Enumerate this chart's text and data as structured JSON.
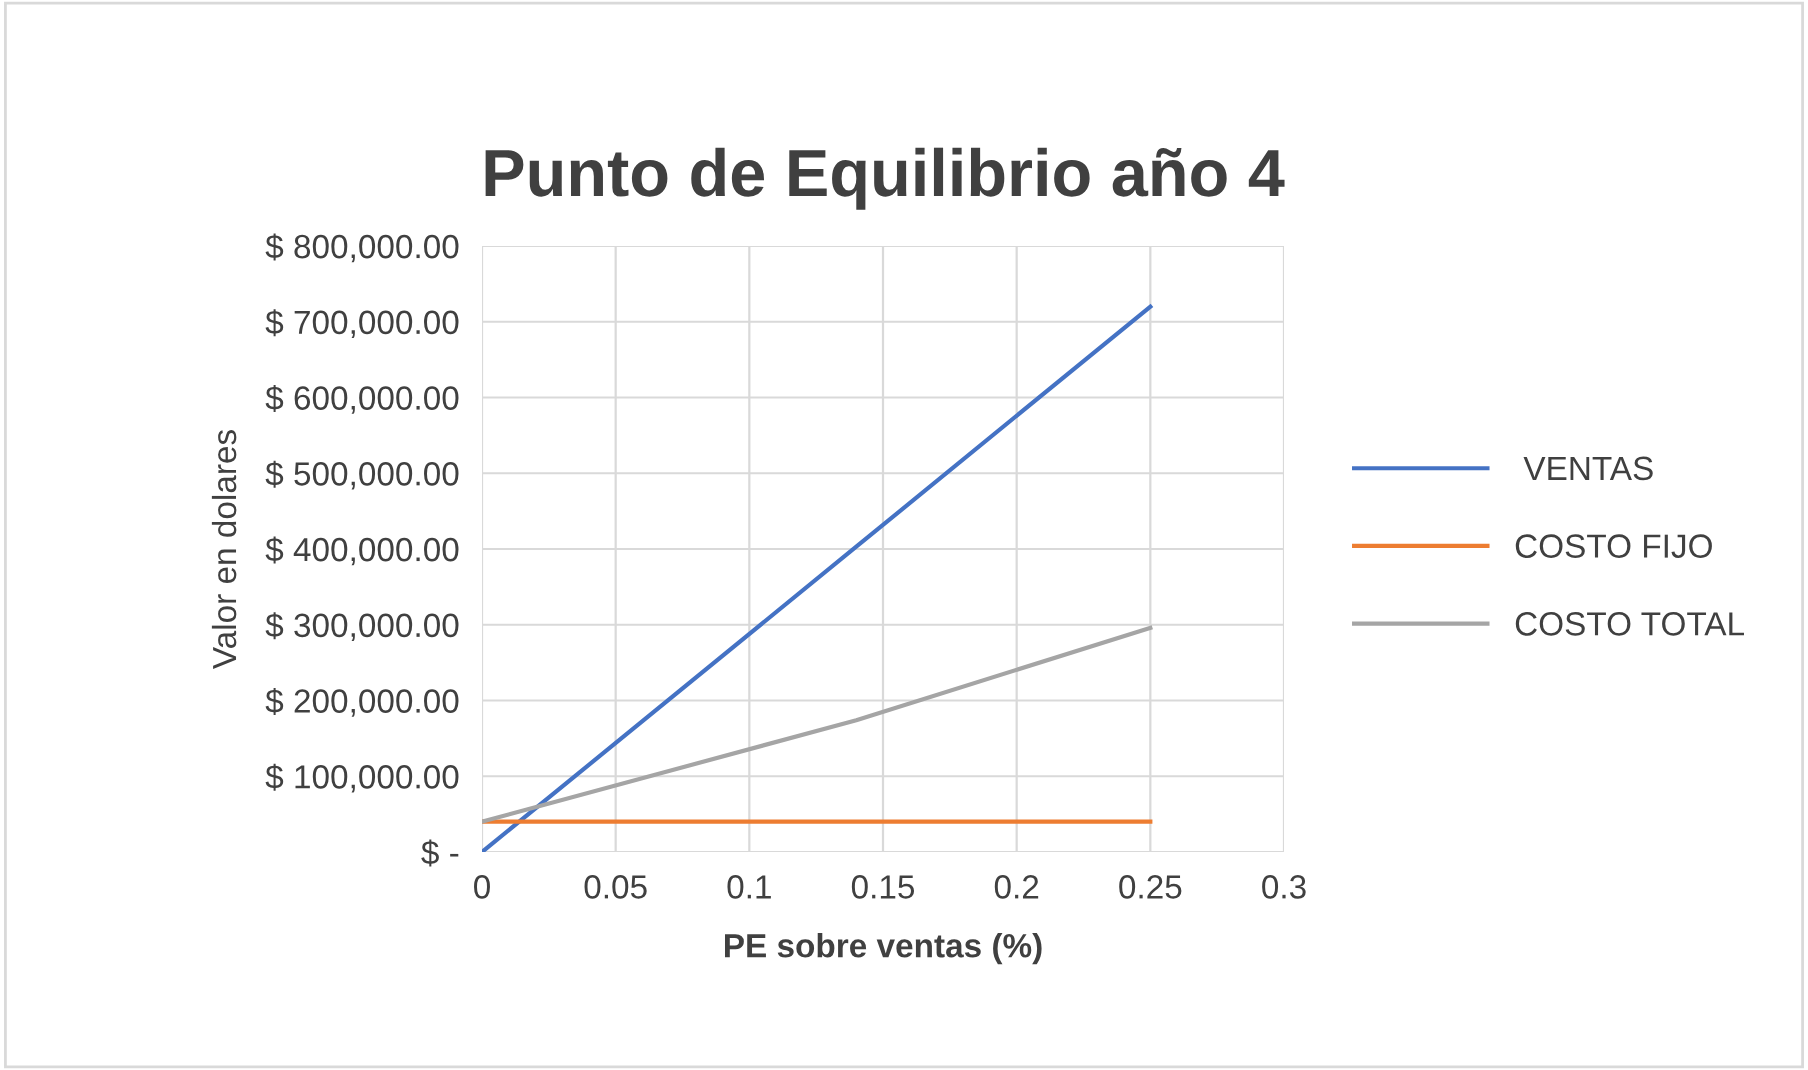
{
  "chart_data": {
    "type": "line",
    "title": "Punto de Equilibrio año 4",
    "xlabel": "PE sobre ventas (%)",
    "ylabel": "Valor en dolares",
    "series": [
      {
        "name": " VENTAS",
        "color": "#4472c4",
        "x": [
          0,
          0.14,
          0.25
        ],
        "values": [
          0,
          403000,
          720000
        ]
      },
      {
        "name": "COSTO FIJO",
        "color": "#ed7d31",
        "x": [
          0,
          0.14,
          0.25
        ],
        "values": [
          40000,
          40000,
          40000
        ]
      },
      {
        "name": "COSTO TOTAL",
        "color": "#a5a5a5",
        "x": [
          0,
          0.14,
          0.25
        ],
        "values": [
          40000,
          174000,
          296000
        ]
      }
    ],
    "xlim": [
      0,
      0.3
    ],
    "xticks": [
      0,
      0.05,
      0.1,
      0.15,
      0.2,
      0.25,
      0.3
    ],
    "ylim": [
      0,
      800000
    ],
    "yticks": [
      {
        "value": 0,
        "label": "$ -"
      },
      {
        "value": 100000,
        "label": "$ 100,000.00"
      },
      {
        "value": 200000,
        "label": "$ 200,000.00"
      },
      {
        "value": 300000,
        "label": "$ 300,000.00"
      },
      {
        "value": 400000,
        "label": "$ 400,000.00"
      },
      {
        "value": 500000,
        "label": "$ 500,000.00"
      },
      {
        "value": 600000,
        "label": "$ 600,000.00"
      },
      {
        "value": 700000,
        "label": "$ 700,000.00"
      },
      {
        "value": 800000,
        "label": "$ 800,000.00"
      }
    ],
    "grid": true,
    "legend": "right",
    "marker": "none",
    "line_style": "solid"
  }
}
